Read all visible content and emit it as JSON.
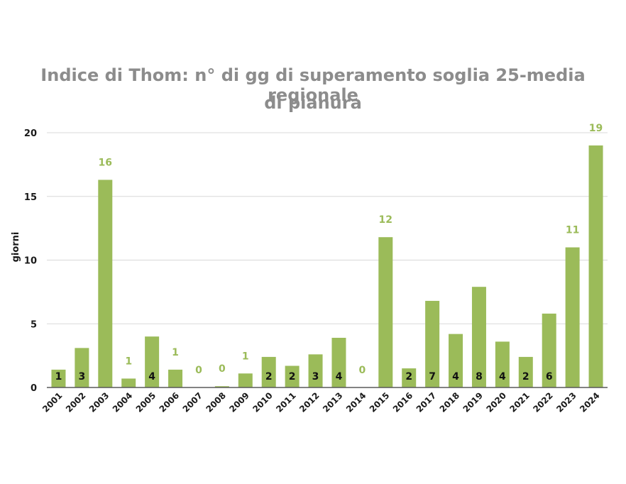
{
  "chart_data": {
    "type": "bar",
    "title_line1": "Indice di Thom: n° di gg di superamento soglia 25-media regionale",
    "title_line2": "di pianura",
    "xlabel": "",
    "ylabel": "giorni",
    "ylim": [
      0,
      20
    ],
    "yticks": [
      0,
      5,
      10,
      15,
      20
    ],
    "grid": true,
    "bar_color": "#9bbb59",
    "grid_color": "#d9d9d9",
    "categories": [
      "2001",
      "2002",
      "2003",
      "2004",
      "2005",
      "2006",
      "2007",
      "2008",
      "2009",
      "2010",
      "2011",
      "2012",
      "2013",
      "2014",
      "2015",
      "2016",
      "2017",
      "2018",
      "2019",
      "2020",
      "2021",
      "2022",
      "2023",
      "2024"
    ],
    "values": [
      1.4,
      3.1,
      16.3,
      0.7,
      4.0,
      1.4,
      0,
      0.1,
      1.1,
      2.4,
      1.7,
      2.6,
      3.9,
      0,
      11.8,
      1.5,
      6.8,
      4.2,
      7.9,
      3.6,
      2.4,
      5.8,
      11.0,
      19.0
    ],
    "labels": [
      "1",
      "3",
      "16",
      "1",
      "4",
      "1",
      "0",
      "0",
      "1",
      "2",
      "2",
      "3",
      "4",
      "0",
      "12",
      "2",
      "7",
      "4",
      "8",
      "4",
      "2",
      "6",
      "11",
      "19"
    ],
    "label_inside": [
      true,
      true,
      false,
      false,
      true,
      false,
      false,
      false,
      false,
      true,
      true,
      true,
      true,
      false,
      false,
      true,
      true,
      true,
      true,
      true,
      true,
      true,
      false,
      false
    ]
  }
}
